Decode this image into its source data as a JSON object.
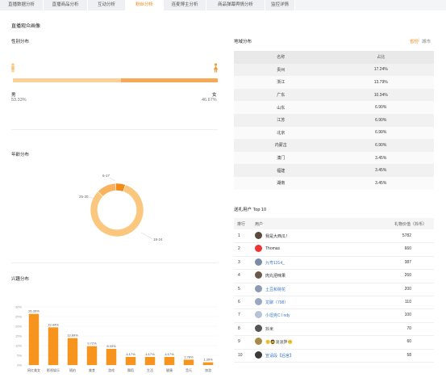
{
  "tabs": [
    "直播数据分析",
    "直播商品分析",
    "互动分析",
    "粉丝分析",
    "连麦博主分析",
    "商品弹幕舆情分析",
    "监控详情"
  ],
  "active_tab": 3,
  "page_title": "直播观众画像",
  "gender": {
    "title": "性别分布",
    "male_label": "男",
    "male_pct": "53.33%",
    "male_value": 53.33,
    "female_label": "女",
    "female_pct": "46.67%",
    "male_color": "#fcd199",
    "female_color": "#f7a957"
  },
  "age": {
    "title": "年龄分布",
    "chart_data": {
      "type": "pie",
      "categories": [
        "18-24",
        "25-30",
        "6-17"
      ],
      "values": [
        82,
        12,
        6
      ]
    },
    "labels": [
      "18-24",
      "25-30",
      "6-17"
    ]
  },
  "interest": {
    "title": "兴趣分布",
    "chart_data": {
      "type": "bar",
      "categories": [
        "网红美女",
        "影视娱乐",
        "随拍",
        "美食",
        "游戏",
        "舞蹈",
        "生活",
        "健康",
        "音乐",
        "旅游"
      ],
      "values": [
        26.39,
        19.44,
        13.89,
        9.72,
        8.33,
        4.17,
        4.17,
        4.17,
        2.78,
        1.39
      ],
      "value_labels": [
        "26.39%",
        "19.44%",
        "13.89%",
        "9.72%",
        "8.33%",
        "4.17%",
        "4.17%",
        "4.17%",
        "2.78%",
        "1.39%"
      ],
      "ylim": [
        0,
        30
      ],
      "yticks": [
        "0%",
        "5%",
        "10%",
        "15%",
        "20%",
        "25%",
        "30%"
      ]
    }
  },
  "region": {
    "title": "地域分布",
    "toggle_province": "省份",
    "toggle_sep": "|",
    "toggle_city": "城市",
    "headers": [
      "名称",
      "占比"
    ],
    "rows": [
      [
        "贵州",
        "17.24%"
      ],
      [
        "浙江",
        "13.79%"
      ],
      [
        "广东",
        "10.34%"
      ],
      [
        "山东",
        "6.90%"
      ],
      [
        "江苏",
        "6.90%"
      ],
      [
        "北京",
        "6.90%"
      ],
      [
        "内蒙古",
        "6.90%"
      ],
      [
        "澳门",
        "3.45%"
      ],
      [
        "福建",
        "3.45%"
      ],
      [
        "湖南",
        "3.45%"
      ]
    ]
  },
  "gift": {
    "title": "送礼用户 Top 10",
    "headers": [
      "排行",
      "用户",
      "礼物价值（抖币）"
    ],
    "rows": [
      {
        "rank": "1",
        "name": "我是大西瓜！",
        "value": "5782"
      },
      {
        "rank": "2",
        "name": "Thomas",
        "value": "660"
      },
      {
        "rank": "3",
        "name": "九粤1314_",
        "value": "387"
      },
      {
        "rank": "4",
        "name": "肉丸把咪果",
        "value": "260"
      },
      {
        "rank": "5",
        "name": "土豆和荷花",
        "value": "200"
      },
      {
        "rank": "6",
        "name": "龙聊（798）",
        "value": "110"
      },
      {
        "rank": "7",
        "name": "小坦克C l ndy",
        "value": "100"
      },
      {
        "rank": "8",
        "name": "抖米",
        "value": "70"
      },
      {
        "rank": "9",
        "name": "🙂🧔淡淡拌🙃",
        "value": "60"
      },
      {
        "rank": "10",
        "name": "宣请段【后宫】",
        "value": "58"
      }
    ]
  }
}
